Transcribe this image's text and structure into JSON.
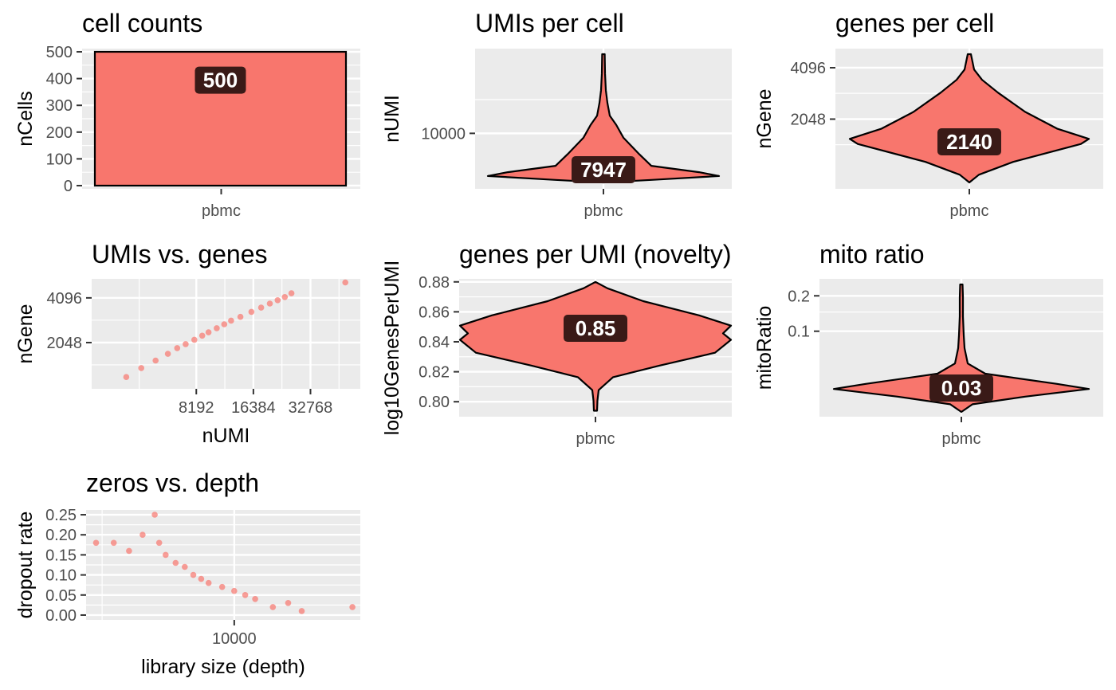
{
  "colors": {
    "fill": "#F8766D",
    "panel": "#EBEBEB",
    "grid": "#FFFFFF",
    "label_bg": "#3A1A17",
    "tick_text": "#4D4D4D"
  },
  "chart_data": [
    {
      "id": "cell-counts",
      "type": "bar",
      "title": "cell counts",
      "xlabel": "",
      "ylabel": "nCells",
      "categories": [
        "pbmc"
      ],
      "values": [
        500
      ],
      "ylim": [
        -12,
        512
      ],
      "yticks": [
        0,
        100,
        200,
        300,
        400,
        500
      ],
      "ytick_labels": [
        "0",
        "100",
        "200",
        "300",
        "400",
        "500"
      ],
      "label": "500",
      "grid": true
    },
    {
      "id": "umis-per-cell",
      "type": "violin",
      "title": "UMIs per cell",
      "xlabel": "",
      "ylabel": "nUMI",
      "categories": [
        "pbmc"
      ],
      "yscale": "log2",
      "ylim": [
        3200,
        57000
      ],
      "yticks": [
        10000
      ],
      "ytick_labels": [
        "10000"
      ],
      "label": "7947",
      "grid": true
    },
    {
      "id": "genes-per-cell",
      "type": "violin",
      "title": "genes per cell",
      "xlabel": "",
      "ylabel": "nGene",
      "categories": [
        "pbmc"
      ],
      "yscale": "log2",
      "ylim": [
        800,
        5300
      ],
      "yticks": [
        2048,
        4096
      ],
      "ytick_labels": [
        "2048",
        "4096"
      ],
      "label": "2140",
      "grid": true
    },
    {
      "id": "umis-vs-genes",
      "type": "scatter",
      "title": "UMIs vs. genes",
      "xlabel": "nUMI",
      "ylabel": "nGene",
      "xscale": "log2",
      "yscale": "log2",
      "xlim": [
        2300,
        60000
      ],
      "ylim": [
        1000,
        5500
      ],
      "xticks": [
        8192,
        16384,
        32768
      ],
      "xtick_labels": [
        "8192",
        "16384",
        "32768"
      ],
      "yticks": [
        2048,
        4096
      ],
      "ytick_labels": [
        "2048",
        "4096"
      ],
      "points": [
        [
          3500,
          1200
        ],
        [
          4200,
          1380
        ],
        [
          5000,
          1550
        ],
        [
          5800,
          1720
        ],
        [
          6500,
          1880
        ],
        [
          7200,
          2000
        ],
        [
          8000,
          2140
        ],
        [
          8800,
          2280
        ],
        [
          9500,
          2400
        ],
        [
          10500,
          2560
        ],
        [
          11500,
          2720
        ],
        [
          12500,
          2880
        ],
        [
          14000,
          3050
        ],
        [
          16000,
          3300
        ],
        [
          18000,
          3520
        ],
        [
          20000,
          3750
        ],
        [
          22000,
          3950
        ],
        [
          24000,
          4150
        ],
        [
          26000,
          4400
        ],
        [
          50000,
          5200
        ]
      ],
      "grid": true
    },
    {
      "id": "genes-per-umi",
      "type": "violin",
      "title": "genes per UMI (novelty)",
      "xlabel": "",
      "ylabel": "log10GenesPerUMI",
      "categories": [
        "pbmc"
      ],
      "ylim": [
        0.79,
        0.882
      ],
      "yticks": [
        0.8,
        0.82,
        0.84,
        0.86,
        0.88
      ],
      "ytick_labels": [
        "0.80",
        "0.82",
        "0.84",
        "0.86",
        "0.88"
      ],
      "label": "0.85",
      "grid": true
    },
    {
      "id": "mito-ratio",
      "type": "violin",
      "title": "mito ratio",
      "xlabel": "",
      "ylabel": "mitoRatio",
      "categories": [
        "pbmc"
      ],
      "yscale": "sqrt",
      "ylim": [
        0.0,
        0.26
      ],
      "yticks": [
        0.1,
        0.2
      ],
      "ytick_labels": [
        "0.1",
        "0.2"
      ],
      "label": "0.03",
      "grid": true
    },
    {
      "id": "zeros-vs-depth",
      "type": "scatter",
      "title": "zeros vs. depth",
      "xlabel": "library size (depth)",
      "ylabel": "dropout rate",
      "xscale": "log10",
      "xlim": [
        2750,
        30000
      ],
      "ylim": [
        -0.012,
        0.262
      ],
      "xticks": [
        10000
      ],
      "xtick_labels": [
        "10000"
      ],
      "yticks": [
        0.0,
        0.05,
        0.1,
        0.15,
        0.2,
        0.25
      ],
      "ytick_labels": [
        "0.00",
        "0.05",
        "0.10",
        "0.15",
        "0.20",
        "0.25"
      ],
      "points": [
        [
          3000,
          0.18
        ],
        [
          3500,
          0.18
        ],
        [
          4000,
          0.16
        ],
        [
          4500,
          0.2
        ],
        [
          5000,
          0.25
        ],
        [
          5200,
          0.18
        ],
        [
          5500,
          0.15
        ],
        [
          6000,
          0.13
        ],
        [
          6500,
          0.12
        ],
        [
          7000,
          0.1
        ],
        [
          7500,
          0.09
        ],
        [
          8000,
          0.08
        ],
        [
          9000,
          0.07
        ],
        [
          10000,
          0.06
        ],
        [
          11000,
          0.05
        ],
        [
          12000,
          0.04
        ],
        [
          14000,
          0.02
        ],
        [
          16000,
          0.03
        ],
        [
          18000,
          0.01
        ],
        [
          28000,
          0.02
        ]
      ],
      "grid": true
    }
  ]
}
